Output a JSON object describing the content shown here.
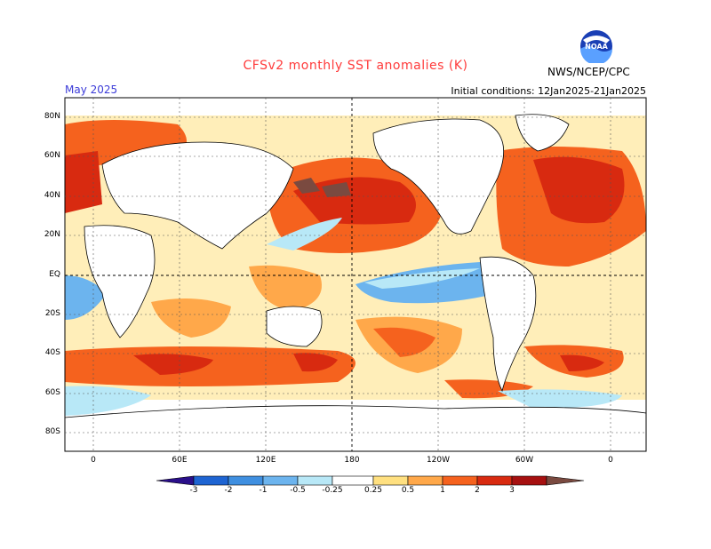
{
  "map": {
    "title": "CFSv2 monthly SST anomalies (K)",
    "period_label": "May 2025",
    "initial_conditions": "Initial conditions: 12Jan2025-21Jan2025",
    "organization": "NWS/NCEP/CPC",
    "logo_text": "NOAA",
    "lat_labels": [
      "80N",
      "60N",
      "40N",
      "20N",
      "EQ",
      "20S",
      "40S",
      "60S",
      "80S"
    ],
    "lon_labels": [
      "0",
      "60E",
      "120E",
      "180",
      "120W",
      "60W",
      "0"
    ]
  },
  "colorbar": {
    "labels": [
      "-3",
      "-2",
      "-1",
      "-0.5",
      "-0.25",
      "0.25",
      "0.5",
      "1",
      "2",
      "3"
    ],
    "colors": [
      "#2a0f8a",
      "#1e64d2",
      "#3f8fe0",
      "#6cb4ee",
      "#b8e8f7",
      "#ffffff",
      "#ffe080",
      "#ffa84a",
      "#f5621e",
      "#d82a10",
      "#a61010",
      "#7a4a40"
    ]
  }
}
